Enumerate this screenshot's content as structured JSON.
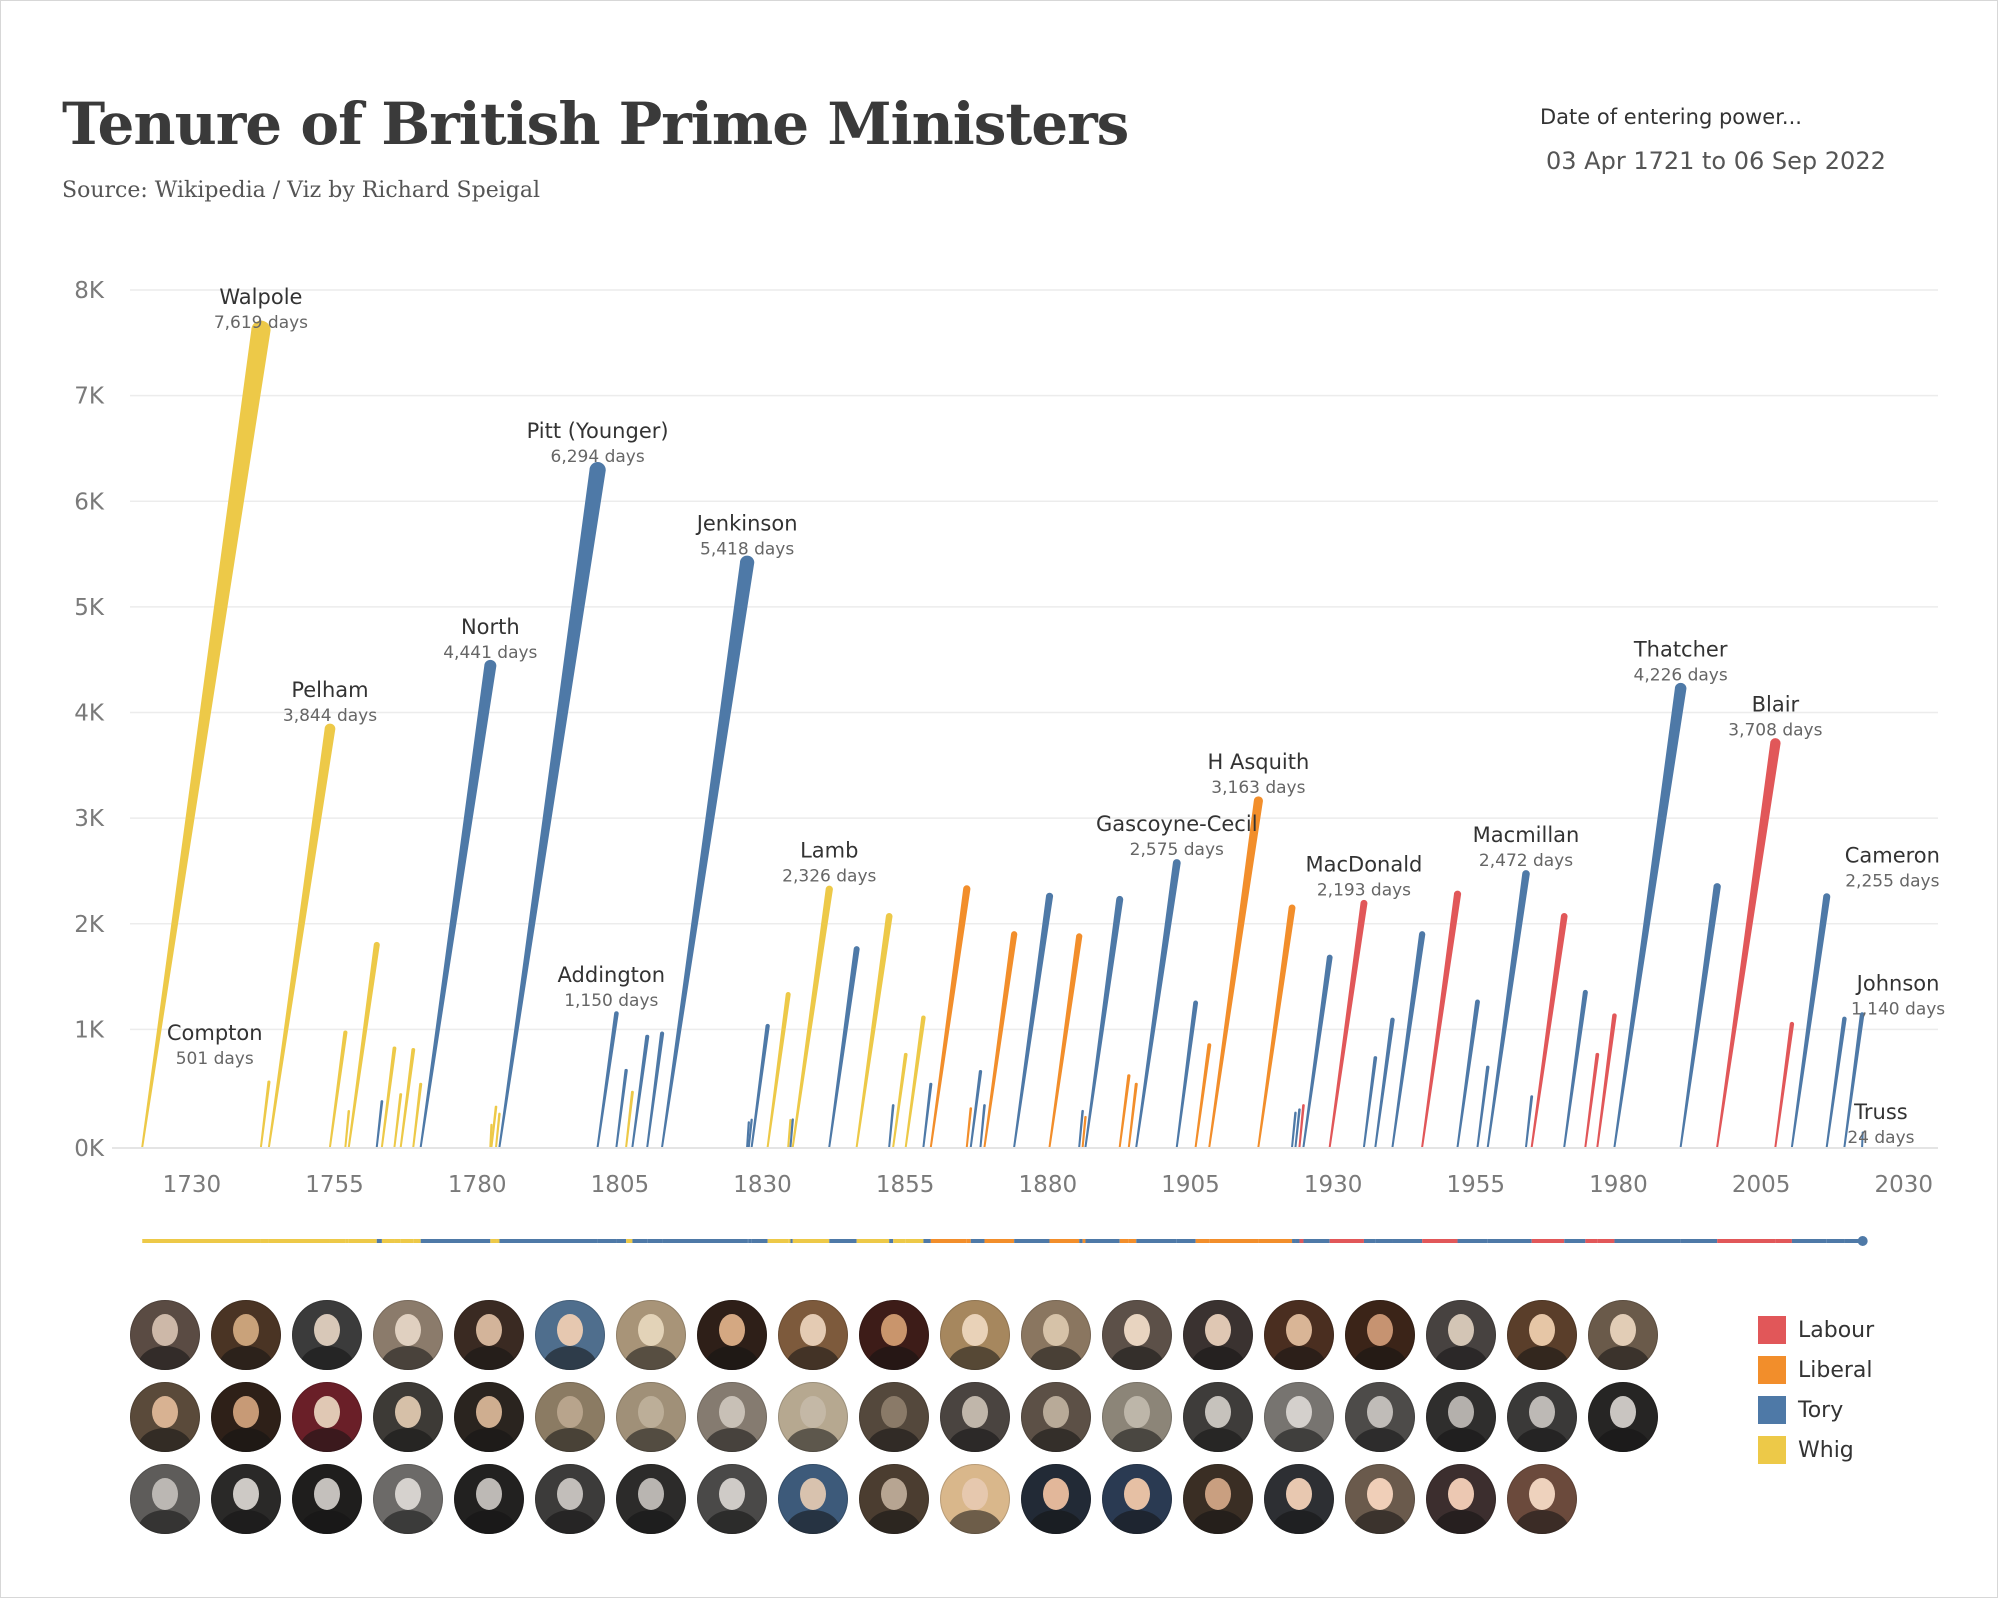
{
  "title": "Tenure of British Prime Ministers",
  "subtitle": "Source: Wikipedia  /  Viz by Richard Speigal",
  "filter": {
    "label": "Date of entering power...",
    "value": "03 Apr 1721 to 06 Sep 2022"
  },
  "colors": {
    "Labour": "#E15759",
    "Liberal": "#F28E2B",
    "Tory": "#4E79A7",
    "Whig": "#EDC948"
  },
  "legend": [
    {
      "party": "Labour",
      "label": "Labour"
    },
    {
      "party": "Liberal",
      "label": "Liberal"
    },
    {
      "party": "Tory",
      "label": "Tory"
    },
    {
      "party": "Whig",
      "label": "Whig"
    }
  ],
  "chart_data": {
    "type": "line",
    "x_unit": "year",
    "y_unit": "days",
    "xlim": [
      1716,
      2036
    ],
    "ylim": [
      0,
      8000
    ],
    "x_ticks": [
      1730,
      1755,
      1780,
      1805,
      1830,
      1855,
      1880,
      1905,
      1930,
      1955,
      1980,
      2005,
      2030
    ],
    "x_tick_labels": [
      "1730",
      "1755",
      "1780",
      "1805",
      "1830",
      "1855",
      "1880",
      "1905",
      "1930",
      "1955",
      "1980",
      "2005",
      "2030"
    ],
    "y_ticks": [
      0,
      1000,
      2000,
      3000,
      4000,
      5000,
      6000,
      7000,
      8000
    ],
    "y_tick_labels": [
      "0K",
      "1K",
      "2K",
      "3K",
      "4K",
      "5K",
      "6K",
      "7K",
      "8K"
    ],
    "grid": true,
    "legend_position": "bottom-right",
    "series": [
      {
        "start": 1721.3,
        "end": 1742.1,
        "days": 7619,
        "party": "Whig",
        "name": "Walpole",
        "label": "7,619 days"
      },
      {
        "start": 1742.1,
        "end": 1743.5,
        "days": 501,
        "party": "Whig",
        "name": "Compton",
        "label": "501 days"
      },
      {
        "start": 1743.5,
        "end": 1754.2,
        "days": 3844,
        "party": "Whig",
        "name": "Pelham",
        "label": "3,844 days"
      },
      {
        "start": 1754.2,
        "end": 1756.9,
        "days": 970,
        "party": "Whig"
      },
      {
        "start": 1756.9,
        "end": 1757.5,
        "days": 225,
        "party": "Whig"
      },
      {
        "start": 1757.5,
        "end": 1762.4,
        "days": 1800,
        "party": "Whig"
      },
      {
        "start": 1762.4,
        "end": 1763.3,
        "days": 317,
        "party": "Tory"
      },
      {
        "start": 1763.3,
        "end": 1765.5,
        "days": 820,
        "party": "Whig"
      },
      {
        "start": 1765.5,
        "end": 1766.6,
        "days": 383,
        "party": "Whig"
      },
      {
        "start": 1766.6,
        "end": 1768.8,
        "days": 806,
        "party": "Whig"
      },
      {
        "start": 1768.8,
        "end": 1770.1,
        "days": 480,
        "party": "Whig"
      },
      {
        "start": 1770.1,
        "end": 1782.3,
        "days": 4441,
        "party": "Tory",
        "name": "North",
        "label": "4,441 days"
      },
      {
        "start": 1782.3,
        "end": 1782.5,
        "days": 96,
        "party": "Whig"
      },
      {
        "start": 1782.5,
        "end": 1783.3,
        "days": 266,
        "party": "Whig"
      },
      {
        "start": 1783.3,
        "end": 1783.9,
        "days": 200,
        "party": "Whig"
      },
      {
        "start": 1783.9,
        "end": 1801.1,
        "days": 6294,
        "party": "Tory",
        "name": "Pitt (Younger)",
        "label": "6,294 days"
      },
      {
        "start": 1801.1,
        "end": 1804.4,
        "days": 1150,
        "party": "Tory",
        "name": "Addington",
        "label": "1,150 days"
      },
      {
        "start": 1804.4,
        "end": 1806.1,
        "days": 610,
        "party": "Tory"
      },
      {
        "start": 1806.1,
        "end": 1807.2,
        "days": 405,
        "party": "Whig"
      },
      {
        "start": 1807.2,
        "end": 1809.8,
        "days": 930,
        "party": "Tory"
      },
      {
        "start": 1809.8,
        "end": 1812.4,
        "days": 960,
        "party": "Tory"
      },
      {
        "start": 1812.4,
        "end": 1827.3,
        "days": 5418,
        "party": "Tory",
        "name": "Jenkinson",
        "label": "5,418 days"
      },
      {
        "start": 1827.3,
        "end": 1827.6,
        "days": 119,
        "party": "Tory"
      },
      {
        "start": 1827.6,
        "end": 1828.1,
        "days": 144,
        "party": "Tory"
      },
      {
        "start": 1828.1,
        "end": 1830.9,
        "days": 1032,
        "party": "Tory"
      },
      {
        "start": 1830.9,
        "end": 1834.5,
        "days": 1330,
        "party": "Whig"
      },
      {
        "start": 1834.5,
        "end": 1834.9,
        "days": 142,
        "party": "Whig"
      },
      {
        "start": 1834.9,
        "end": 1835.3,
        "days": 146,
        "party": "Tory"
      },
      {
        "start": 1835.3,
        "end": 1841.7,
        "days": 2326,
        "party": "Whig",
        "name": "Lamb",
        "label": "2,326 days"
      },
      {
        "start": 1841.7,
        "end": 1846.5,
        "days": 1760,
        "party": "Tory"
      },
      {
        "start": 1846.5,
        "end": 1852.2,
        "days": 2070,
        "party": "Whig"
      },
      {
        "start": 1852.2,
        "end": 1852.9,
        "days": 280,
        "party": "Tory"
      },
      {
        "start": 1852.9,
        "end": 1855.1,
        "days": 760,
        "party": "Whig"
      },
      {
        "start": 1855.1,
        "end": 1858.2,
        "days": 1110,
        "party": "Whig"
      },
      {
        "start": 1858.2,
        "end": 1859.5,
        "days": 480,
        "party": "Tory"
      },
      {
        "start": 1859.5,
        "end": 1865.8,
        "days": 2330,
        "party": "Liberal"
      },
      {
        "start": 1865.8,
        "end": 1866.5,
        "days": 250,
        "party": "Liberal"
      },
      {
        "start": 1866.5,
        "end": 1868.2,
        "days": 600,
        "party": "Tory"
      },
      {
        "start": 1868.2,
        "end": 1868.9,
        "days": 280,
        "party": "Tory"
      },
      {
        "start": 1868.9,
        "end": 1874.1,
        "days": 1900,
        "party": "Liberal"
      },
      {
        "start": 1874.1,
        "end": 1880.3,
        "days": 2260,
        "party": "Tory"
      },
      {
        "start": 1880.3,
        "end": 1885.5,
        "days": 1880,
        "party": "Liberal"
      },
      {
        "start": 1885.5,
        "end": 1886.1,
        "days": 226,
        "party": "Tory"
      },
      {
        "start": 1886.1,
        "end": 1886.6,
        "days": 170,
        "party": "Liberal"
      },
      {
        "start": 1886.6,
        "end": 1892.6,
        "days": 2230,
        "party": "Tory"
      },
      {
        "start": 1892.6,
        "end": 1894.2,
        "days": 560,
        "party": "Liberal"
      },
      {
        "start": 1894.2,
        "end": 1895.5,
        "days": 480,
        "party": "Liberal"
      },
      {
        "start": 1895.5,
        "end": 1902.6,
        "days": 2575,
        "party": "Tory",
        "name": "Gascoyne-Cecil",
        "label": "2,575 days"
      },
      {
        "start": 1902.6,
        "end": 1905.9,
        "days": 1250,
        "party": "Tory"
      },
      {
        "start": 1905.9,
        "end": 1908.3,
        "days": 850,
        "party": "Liberal"
      },
      {
        "start": 1908.3,
        "end": 1916.9,
        "days": 3163,
        "party": "Liberal",
        "name": "H Asquith",
        "label": "3,163 days"
      },
      {
        "start": 1916.9,
        "end": 1922.8,
        "days": 2150,
        "party": "Liberal"
      },
      {
        "start": 1922.8,
        "end": 1923.4,
        "days": 210,
        "party": "Tory"
      },
      {
        "start": 1923.4,
        "end": 1924.1,
        "days": 240,
        "party": "Tory"
      },
      {
        "start": 1924.1,
        "end": 1924.8,
        "days": 280,
        "party": "Labour"
      },
      {
        "start": 1924.8,
        "end": 1929.4,
        "days": 1680,
        "party": "Tory"
      },
      {
        "start": 1929.4,
        "end": 1935.4,
        "days": 2193,
        "party": "Labour",
        "name": "MacDonald",
        "label": "2,193 days"
      },
      {
        "start": 1935.4,
        "end": 1937.4,
        "days": 730,
        "party": "Tory"
      },
      {
        "start": 1937.4,
        "end": 1940.4,
        "days": 1090,
        "party": "Tory"
      },
      {
        "start": 1940.4,
        "end": 1945.6,
        "days": 1900,
        "party": "Tory"
      },
      {
        "start": 1945.6,
        "end": 1951.8,
        "days": 2280,
        "party": "Labour"
      },
      {
        "start": 1951.8,
        "end": 1955.3,
        "days": 1260,
        "party": "Tory"
      },
      {
        "start": 1955.3,
        "end": 1957.1,
        "days": 640,
        "party": "Tory"
      },
      {
        "start": 1957.1,
        "end": 1963.8,
        "days": 2472,
        "party": "Tory",
        "name": "Macmillan",
        "label": "2,472 days"
      },
      {
        "start": 1963.8,
        "end": 1964.8,
        "days": 363,
        "party": "Tory"
      },
      {
        "start": 1964.8,
        "end": 1970.5,
        "days": 2070,
        "party": "Labour"
      },
      {
        "start": 1970.5,
        "end": 1974.2,
        "days": 1350,
        "party": "Tory"
      },
      {
        "start": 1974.2,
        "end": 1976.3,
        "days": 760,
        "party": "Labour"
      },
      {
        "start": 1976.3,
        "end": 1979.3,
        "days": 1130,
        "party": "Labour"
      },
      {
        "start": 1979.3,
        "end": 1990.9,
        "days": 4226,
        "party": "Tory",
        "name": "Thatcher",
        "label": "4,226 days"
      },
      {
        "start": 1990.9,
        "end": 1997.3,
        "days": 2350,
        "party": "Tory"
      },
      {
        "start": 1997.3,
        "end": 2007.5,
        "days": 3708,
        "party": "Labour",
        "name": "Blair",
        "label": "3,708 days"
      },
      {
        "start": 2007.5,
        "end": 2010.4,
        "days": 1050,
        "party": "Labour"
      },
      {
        "start": 2010.4,
        "end": 2016.5,
        "days": 2255,
        "party": "Tory",
        "name": "Cameron",
        "label": "2,255 days"
      },
      {
        "start": 2016.5,
        "end": 2019.6,
        "days": 1100,
        "party": "Tory"
      },
      {
        "start": 2019.6,
        "end": 2022.7,
        "days": 1140,
        "party": "Tory",
        "name": "Johnson",
        "label": "1,140 days"
      },
      {
        "start": 2022.7,
        "end": 2022.8,
        "days": 24,
        "party": "Tory",
        "name": "Truss",
        "label": "24 days"
      }
    ]
  },
  "portraits": [
    {
      "tone": "#cdb8a8",
      "bg": "#5a4b43"
    },
    {
      "tone": "#c9a27a",
      "bg": "#4a3424"
    },
    {
      "tone": "#d8c8b8",
      "bg": "#3b3b3b"
    },
    {
      "tone": "#e0d0c0",
      "bg": "#8b7b6b"
    },
    {
      "tone": "#d3b49a",
      "bg": "#3a2a22"
    },
    {
      "tone": "#e6c8b0",
      "bg": "#4f6e8d"
    },
    {
      "tone": "#e3d3b8",
      "bg": "#a89478"
    },
    {
      "tone": "#d4a882",
      "bg": "#2e1f18"
    },
    {
      "tone": "#e4cbb3",
      "bg": "#7d5a3c"
    },
    {
      "tone": "#c9956c",
      "bg": "#3d1c18"
    },
    {
      "tone": "#e9d2b8",
      "bg": "#a6875e"
    },
    {
      "tone": "#d6c2a8",
      "bg": "#8a7660"
    },
    {
      "tone": "#e8d4c0",
      "bg": "#5c5048"
    },
    {
      "tone": "#dfc7b3",
      "bg": "#3a3230"
    },
    {
      "tone": "#d9b596",
      "bg": "#4a2e20"
    },
    {
      "tone": "#c69371",
      "bg": "#3b2418"
    },
    {
      "tone": "#d3c5b5",
      "bg": "#474240"
    },
    {
      "tone": "#e6c6a6",
      "bg": "#5a3e2a"
    },
    {
      "tone": "#e2cdb6",
      "bg": "#6a5a4a"
    },
    {
      "tone": "#d8b292",
      "bg": "#5a4a3a"
    },
    {
      "tone": "#c79a76",
      "bg": "#2e2018"
    },
    {
      "tone": "#e0c8b4",
      "bg": "#6a1f28"
    },
    {
      "tone": "#d6c0a8",
      "bg": "#3d3a36"
    },
    {
      "tone": "#cfae90",
      "bg": "#2a241f"
    },
    {
      "tone": "#b8a48c",
      "bg": "#8b7b63"
    },
    {
      "tone": "#bcae98",
      "bg": "#a09078"
    },
    {
      "tone": "#c8c0b6",
      "bg": "#857b70"
    },
    {
      "tone": "#c4b8a6",
      "bg": "#b6a890"
    },
    {
      "tone": "#8a7a68",
      "bg": "#54483c"
    },
    {
      "tone": "#c0b6aa",
      "bg": "#4a4440"
    },
    {
      "tone": "#b8aa98",
      "bg": "#5c5046"
    },
    {
      "tone": "#bdb6a9",
      "bg": "#8c8578"
    },
    {
      "tone": "#c6c2bc",
      "bg": "#3e3c3a"
    },
    {
      "tone": "#d4d0cc",
      "bg": "#777470"
    },
    {
      "tone": "#c0bcb8",
      "bg": "#4d4b49"
    },
    {
      "tone": "#b4b0ac",
      "bg": "#2f2e2d"
    },
    {
      "tone": "#bdb9b5",
      "bg": "#3a3938"
    },
    {
      "tone": "#c9c5c1",
      "bg": "#262524"
    },
    {
      "tone": "#bbb7b3",
      "bg": "#5e5c5a"
    },
    {
      "tone": "#cdc9c5",
      "bg": "#2a2928"
    },
    {
      "tone": "#c4c0bc",
      "bg": "#1f1e1d"
    },
    {
      "tone": "#d6d2ce",
      "bg": "#6c6a68"
    },
    {
      "tone": "#bdb9b5",
      "bg": "#222120"
    },
    {
      "tone": "#c2beba",
      "bg": "#3c3b3a"
    },
    {
      "tone": "#b9b5b1",
      "bg": "#2c2b2a"
    },
    {
      "tone": "#cfcbc7",
      "bg": "#4a4948"
    },
    {
      "tone": "#d8c2ae",
      "bg": "#3d5a7a"
    },
    {
      "tone": "#b7a592",
      "bg": "#4b3d30"
    },
    {
      "tone": "#e6c8ae",
      "bg": "#d9b78b"
    },
    {
      "tone": "#e2b79a",
      "bg": "#222a36"
    },
    {
      "tone": "#e6c0a4",
      "bg": "#2a3a52"
    },
    {
      "tone": "#c99f80",
      "bg": "#3a2e24"
    },
    {
      "tone": "#e8c8b0",
      "bg": "#2d2f33"
    },
    {
      "tone": "#f0cfb8",
      "bg": "#6a5a4c"
    },
    {
      "tone": "#ecc8b2",
      "bg": "#3c2e2e"
    },
    {
      "tone": "#eed2bd",
      "bg": "#6b4a3c"
    }
  ]
}
